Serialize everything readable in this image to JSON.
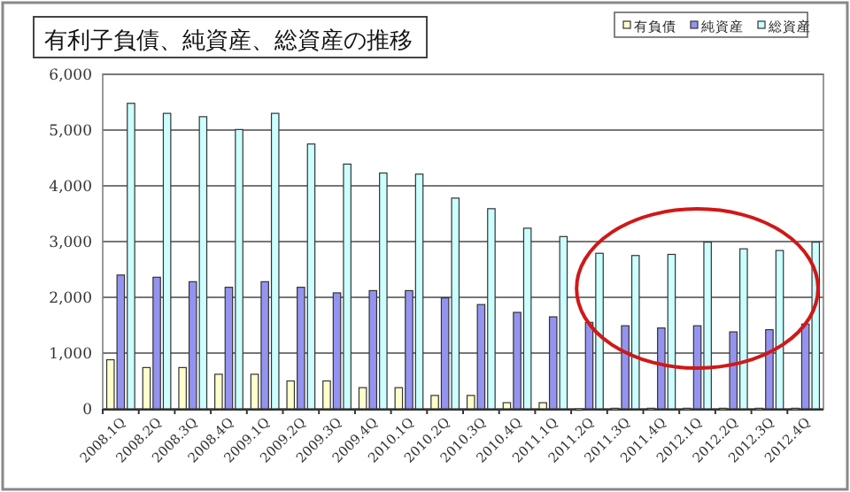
{
  "chart_data": {
    "type": "bar",
    "title": "有利子負債、純資産、総資産の推移",
    "categories": [
      "2008.1Q",
      "2008.2Q",
      "2008.3Q",
      "2008.4Q",
      "2009.1Q",
      "2009.2Q",
      "2009.3Q",
      "2009.4Q",
      "2010.1Q",
      "2010.2Q",
      "2010.3Q",
      "2010.4Q",
      "2011.1Q",
      "2011.2Q",
      "2011.3Q",
      "2011.4Q",
      "2012.1Q",
      "2012.2Q",
      "2012.3Q",
      "2012.4Q"
    ],
    "series": [
      {
        "name": "有負債",
        "color": "#ffffcc",
        "values": [
          880,
          740,
          740,
          620,
          620,
          500,
          500,
          380,
          380,
          240,
          240,
          110,
          110,
          0,
          10,
          10,
          10,
          10,
          10,
          10
        ]
      },
      {
        "name": "純資産",
        "color": "#9494f0",
        "values": [
          2400,
          2360,
          2280,
          2180,
          2280,
          2180,
          2080,
          2120,
          2120,
          1990,
          1870,
          1730,
          1650,
          1550,
          1490,
          1450,
          1490,
          1380,
          1420,
          1520
        ]
      },
      {
        "name": "総資産",
        "color": "#ccffff",
        "values": [
          5480,
          5300,
          5240,
          5010,
          5300,
          4750,
          4390,
          4230,
          4210,
          3780,
          3590,
          3240,
          3090,
          2790,
          2750,
          2770,
          2990,
          2870,
          2840,
          2990
        ]
      }
    ],
    "ylim": [
      0,
      6000
    ],
    "yticks": [
      {
        "value": 0,
        "label": "0"
      },
      {
        "value": 1000,
        "label": "1,000"
      },
      {
        "value": 2000,
        "label": "2,000"
      },
      {
        "value": 3000,
        "label": "3,000"
      },
      {
        "value": 4000,
        "label": "4,000"
      },
      {
        "value": 5000,
        "label": "5,000"
      },
      {
        "value": 6000,
        "label": "6,000"
      }
    ],
    "grid": "y",
    "legend": "top right"
  }
}
